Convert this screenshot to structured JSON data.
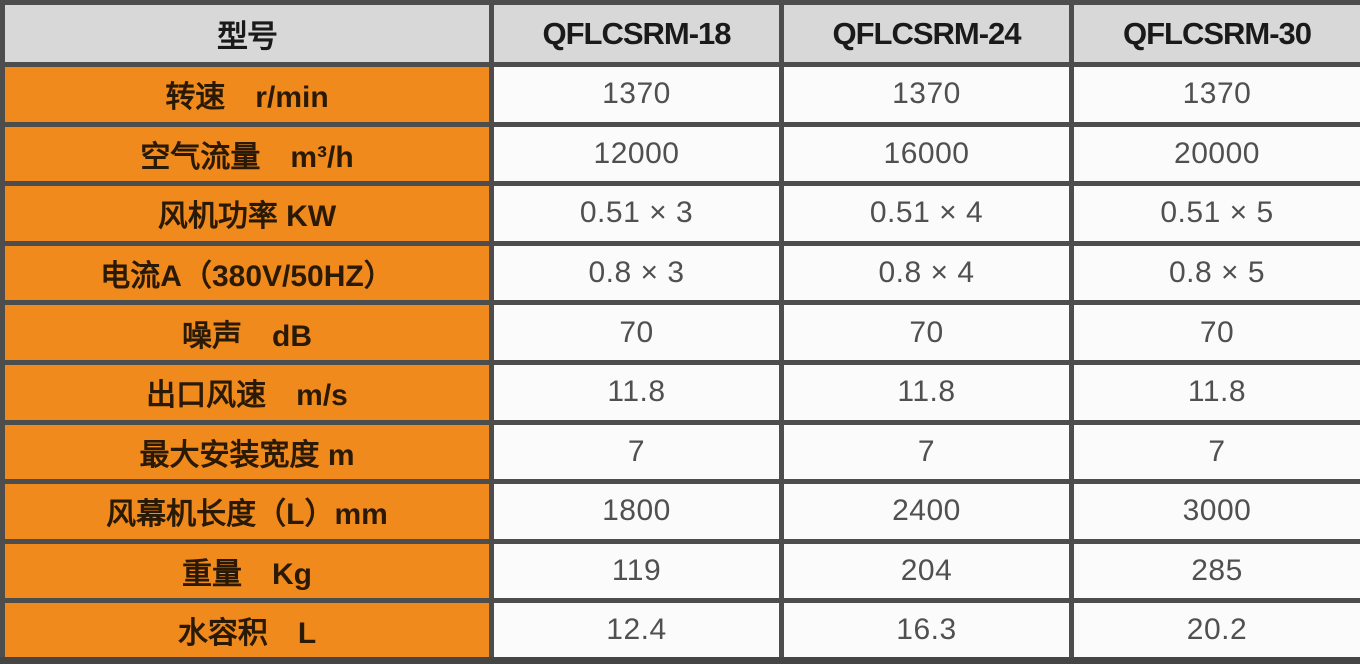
{
  "chart_data": {
    "type": "table",
    "columns": [
      "型号",
      "QFLCSRM-18",
      "QFLCSRM-24",
      "QFLCSRM-30"
    ],
    "rows": [
      {
        "label": "转速　r/min",
        "values": [
          "1370",
          "1370",
          "1370"
        ]
      },
      {
        "label": "空气流量　m³/h",
        "values": [
          "12000",
          "16000",
          "20000"
        ]
      },
      {
        "label": "风机功率 KW",
        "values": [
          "0.51 × 3",
          "0.51 × 4",
          "0.51 × 5"
        ]
      },
      {
        "label": "电流A（380V/50HZ）",
        "values": [
          "0.8 × 3",
          "0.8 × 4",
          "0.8 × 5"
        ]
      },
      {
        "label": "噪声　dB",
        "values": [
          "70",
          "70",
          "70"
        ]
      },
      {
        "label": "出口风速　m/s",
        "values": [
          "11.8",
          "11.8",
          "11.8"
        ]
      },
      {
        "label": "最大安装宽度 m",
        "values": [
          "7",
          "7",
          "7"
        ]
      },
      {
        "label": "风幕机长度（L）mm",
        "values": [
          "1800",
          "2400",
          "3000"
        ]
      },
      {
        "label": "重量　Kg",
        "values": [
          "119",
          "204",
          "285"
        ]
      },
      {
        "label": "水容积　L",
        "values": [
          "12.4",
          "16.3",
          "20.2"
        ]
      }
    ]
  },
  "colors": {
    "header_bg": "#d8d8d8",
    "header_text": "#1a1a1a",
    "label_bg": "#f08a1d",
    "label_text": "#2a1a05",
    "value_bg": "#fbfbfb",
    "value_text": "#505050",
    "grid": "#4d4d4d"
  }
}
